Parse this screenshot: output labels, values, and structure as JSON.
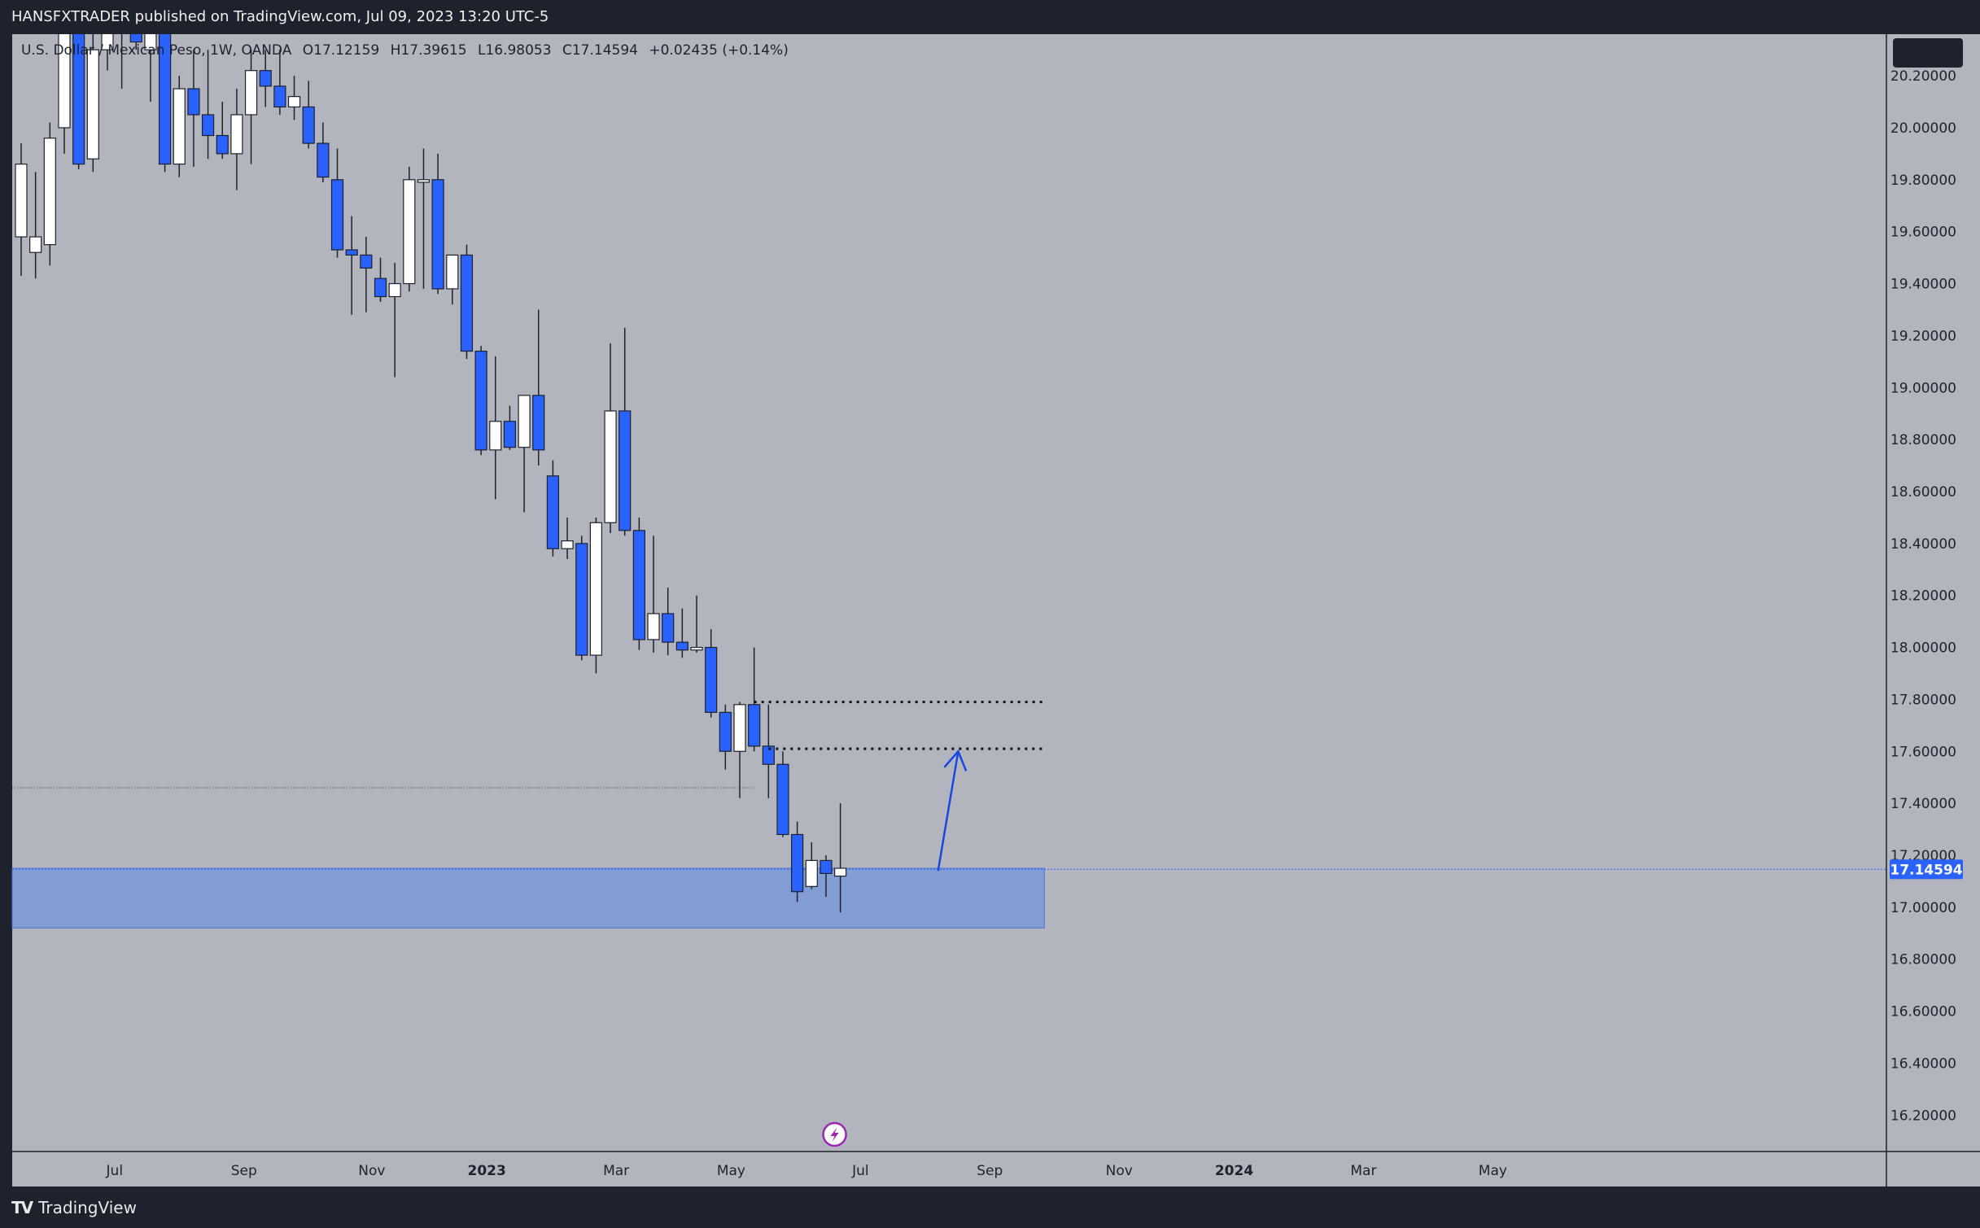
{
  "header": {
    "publisher_line": "HANSFXTRADER published on TradingView.com, Jul 09, 2023 13:20 UTC-5"
  },
  "legend": {
    "symbol": "U.S. Dollar / Mexican Peso, 1W, OANDA",
    "open": "O17.12159",
    "high": "H17.39615",
    "low": "L16.98053",
    "close": "C17.14594",
    "change": "+0.02435 (+0.14%)"
  },
  "footer": {
    "brand": "TradingView"
  },
  "colors": {
    "background": "#b2b5be",
    "bull_body": "#ffffff",
    "bear_body": "#2962ff",
    "wick": "#1e222d",
    "zone": "#7f9cd6",
    "arrow": "#1848e0",
    "price_badge": "#2962ff"
  },
  "chart_data": {
    "type": "candlestick",
    "interval": "1W",
    "ylim": [
      16.06,
      20.36
    ],
    "y_ticks": [
      "20.20000",
      "20.00000",
      "19.80000",
      "19.60000",
      "19.40000",
      "19.20000",
      "19.00000",
      "18.80000",
      "18.60000",
      "18.40000",
      "18.20000",
      "18.00000",
      "17.80000",
      "17.60000",
      "17.40000",
      "17.20000",
      "17.00000",
      "16.80000",
      "16.60000",
      "16.40000",
      "16.20000"
    ],
    "x_ticks": [
      {
        "label": "Jul",
        "i": 6.5,
        "bold": false
      },
      {
        "label": "Sep",
        "i": 15.5,
        "bold": false
      },
      {
        "label": "Nov",
        "i": 24.4,
        "bold": false
      },
      {
        "label": "2023",
        "i": 32.4,
        "bold": true
      },
      {
        "label": "Mar",
        "i": 41.4,
        "bold": false
      },
      {
        "label": "May",
        "i": 49.4,
        "bold": false
      },
      {
        "label": "Jul",
        "i": 58.4,
        "bold": false
      },
      {
        "label": "Sep",
        "i": 67.4,
        "bold": false
      },
      {
        "label": "Nov",
        "i": 76.4,
        "bold": false
      },
      {
        "label": "2024",
        "i": 84.4,
        "bold": true
      },
      {
        "label": "Mar",
        "i": 93.4,
        "bold": false
      },
      {
        "label": "May",
        "i": 102.4,
        "bold": false
      }
    ],
    "candles": [
      [
        19.58,
        19.94,
        19.43,
        19.86
      ],
      [
        19.52,
        19.83,
        19.42,
        19.58
      ],
      [
        19.55,
        20.02,
        19.47,
        19.96
      ],
      [
        20.0,
        20.4,
        19.9,
        20.38
      ],
      [
        20.38,
        20.45,
        19.84,
        19.86
      ],
      [
        19.88,
        20.45,
        19.83,
        20.3
      ],
      [
        20.3,
        20.45,
        20.22,
        20.4
      ],
      [
        20.4,
        20.48,
        20.15,
        20.38
      ],
      [
        20.4,
        20.55,
        20.3,
        20.33
      ],
      [
        20.3,
        20.4,
        20.1,
        20.42
      ],
      [
        20.42,
        20.45,
        19.83,
        19.86
      ],
      [
        19.86,
        20.2,
        19.81,
        20.15
      ],
      [
        20.15,
        20.3,
        19.85,
        20.05
      ],
      [
        20.05,
        20.3,
        19.88,
        19.97
      ],
      [
        19.97,
        20.1,
        19.88,
        19.9
      ],
      [
        19.9,
        20.15,
        19.76,
        20.05
      ],
      [
        20.05,
        20.3,
        19.86,
        20.22
      ],
      [
        20.22,
        20.3,
        20.08,
        20.16
      ],
      [
        20.16,
        20.3,
        20.05,
        20.08
      ],
      [
        20.08,
        20.2,
        20.03,
        20.12
      ],
      [
        20.08,
        20.18,
        19.92,
        19.94
      ],
      [
        19.94,
        20.02,
        19.79,
        19.81
      ],
      [
        19.8,
        19.92,
        19.5,
        19.53
      ],
      [
        19.53,
        19.66,
        19.28,
        19.51
      ],
      [
        19.51,
        19.58,
        19.29,
        19.46
      ],
      [
        19.42,
        19.5,
        19.33,
        19.35
      ],
      [
        19.35,
        19.48,
        19.04,
        19.4
      ],
      [
        19.4,
        19.85,
        19.37,
        19.8
      ],
      [
        19.79,
        19.92,
        19.38,
        19.8
      ],
      [
        19.8,
        19.9,
        19.36,
        19.38
      ],
      [
        19.38,
        19.5,
        19.32,
        19.51
      ],
      [
        19.51,
        19.55,
        19.11,
        19.14
      ],
      [
        19.14,
        19.16,
        18.74,
        18.76
      ],
      [
        18.76,
        19.12,
        18.57,
        18.87
      ],
      [
        18.87,
        18.93,
        18.76,
        18.77
      ],
      [
        18.77,
        18.97,
        18.52,
        18.97
      ],
      [
        18.97,
        19.3,
        18.7,
        18.76
      ],
      [
        18.66,
        18.72,
        18.35,
        18.38
      ],
      [
        18.38,
        18.5,
        18.34,
        18.41
      ],
      [
        18.4,
        18.43,
        17.95,
        17.97
      ],
      [
        17.97,
        18.5,
        17.9,
        18.48
      ],
      [
        18.48,
        19.17,
        18.44,
        18.91
      ],
      [
        18.91,
        19.23,
        18.43,
        18.45
      ],
      [
        18.45,
        18.5,
        17.99,
        18.03
      ],
      [
        18.03,
        18.43,
        17.98,
        18.13
      ],
      [
        18.13,
        18.23,
        17.97,
        18.02
      ],
      [
        18.02,
        18.15,
        17.96,
        17.99
      ],
      [
        17.99,
        18.2,
        17.98,
        18.0
      ],
      [
        18.0,
        18.07,
        17.73,
        17.75
      ],
      [
        17.75,
        17.78,
        17.53,
        17.6
      ],
      [
        17.6,
        17.79,
        17.42,
        17.78
      ],
      [
        17.78,
        18.0,
        17.6,
        17.62
      ],
      [
        17.62,
        17.78,
        17.42,
        17.55
      ],
      [
        17.55,
        17.6,
        17.27,
        17.28
      ],
      [
        17.28,
        17.33,
        17.02,
        17.06
      ],
      [
        17.08,
        17.25,
        17.07,
        17.18
      ],
      [
        17.18,
        17.2,
        17.04,
        17.13
      ],
      [
        17.12,
        17.4,
        16.98,
        17.15
      ]
    ],
    "zone": {
      "top": 17.15,
      "bottom": 16.92,
      "i_end": 71.2
    },
    "levels": [
      {
        "price": 17.79,
        "i_start": 51,
        "i_end": 71.2
      },
      {
        "price": 17.61,
        "i_start": 52,
        "i_end": 71.2
      }
    ],
    "current_price": {
      "value": 17.14594,
      "label": "17.14594"
    },
    "old_price_line": {
      "price": 17.46
    },
    "arrow": {
      "from": [
        63.8,
        17.14
      ],
      "to": [
        65.2,
        17.6
      ]
    }
  }
}
